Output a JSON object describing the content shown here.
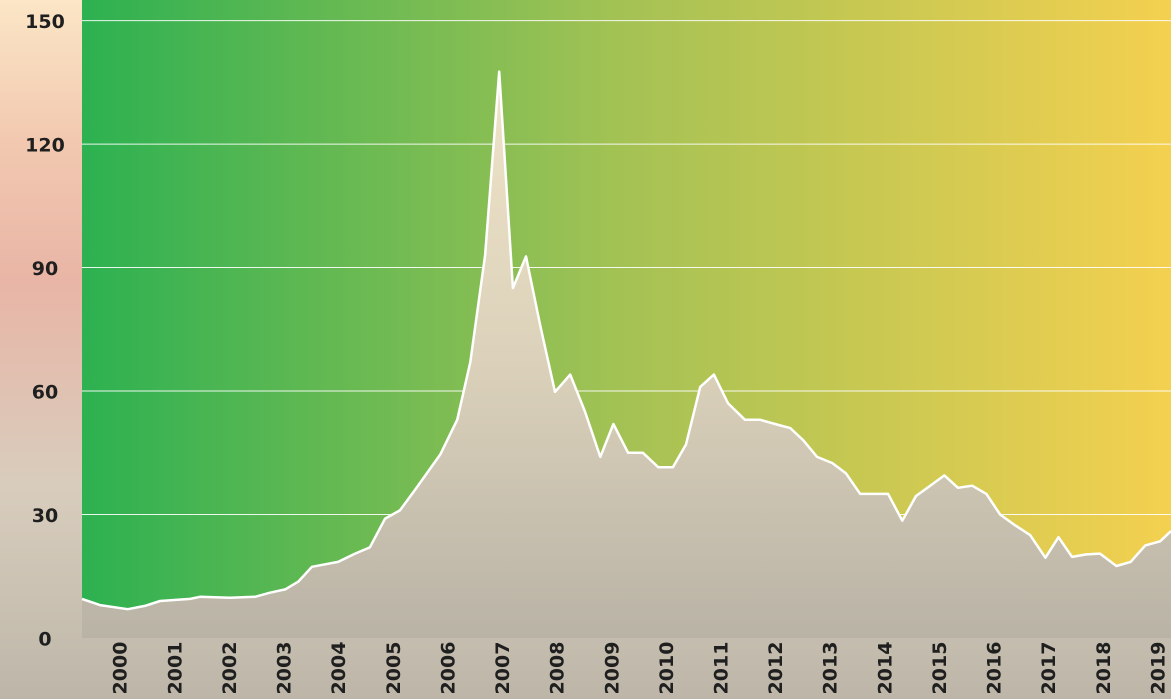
{
  "chart_data": {
    "type": "area",
    "x": [
      1999.3,
      1999.63,
      2000.14,
      2000.45,
      2000.73,
      2001.28,
      2001.46,
      2002.01,
      2002.47,
      2002.74,
      2003.02,
      2003.26,
      2003.51,
      2003.99,
      2004.3,
      2004.57,
      2004.85,
      2005.12,
      2005.4,
      2005.86,
      2006.17,
      2006.41,
      2006.68,
      2006.94,
      2007.19,
      2007.43,
      2007.69,
      2007.96,
      2008.24,
      2008.51,
      2008.79,
      2009.03,
      2009.3,
      2009.57,
      2009.85,
      2010.12,
      2010.36,
      2010.62,
      2010.87,
      2011.13,
      2011.44,
      2011.72,
      2011.99,
      2012.27,
      2012.51,
      2012.76,
      2013.04,
      2013.29,
      2013.55,
      2014.06,
      2014.32,
      2014.57,
      2014.83,
      2015.09,
      2015.34,
      2015.6,
      2015.86,
      2016.11,
      2016.37,
      2016.66,
      2016.94,
      2017.18,
      2017.43,
      2017.69,
      2017.94,
      2018.24,
      2018.5,
      2018.77,
      2019.04,
      2019.24
    ],
    "values": [
      9.5,
      8,
      7,
      7.8,
      9,
      9.5,
      10,
      9.8,
      10,
      11,
      11.8,
      13.7,
      17.3,
      18.5,
      20.5,
      22,
      29,
      31,
      36,
      44.6,
      53,
      67,
      93,
      137.6,
      85,
      92.7,
      76,
      59.8,
      64,
      55,
      44,
      52,
      45,
      45,
      41.5,
      41.5,
      47,
      61,
      64,
      57,
      53,
      53,
      52,
      51,
      48,
      44,
      42.5,
      40,
      35,
      35,
      28.5,
      34.5,
      37,
      39.5,
      36.5,
      37,
      35,
      30,
      27.5,
      25,
      19.5,
      24.5,
      19.7,
      20.3,
      20.5,
      17.5,
      18.5,
      22.5,
      23.5,
      26
    ],
    "color": "#ffffff",
    "xlim": [
      1999.3,
      2019.24
    ],
    "ylim": [
      0,
      155
    ],
    "xticks": [
      2000,
      2001,
      2002,
      2003,
      2004,
      2005,
      2006,
      2007,
      2008,
      2009,
      2010,
      2011,
      2012,
      2013,
      2014,
      2015,
      2016,
      2017,
      2018,
      2019
    ],
    "yticks": [
      0,
      30,
      60,
      90,
      120,
      150
    ],
    "grid": true
  }
}
